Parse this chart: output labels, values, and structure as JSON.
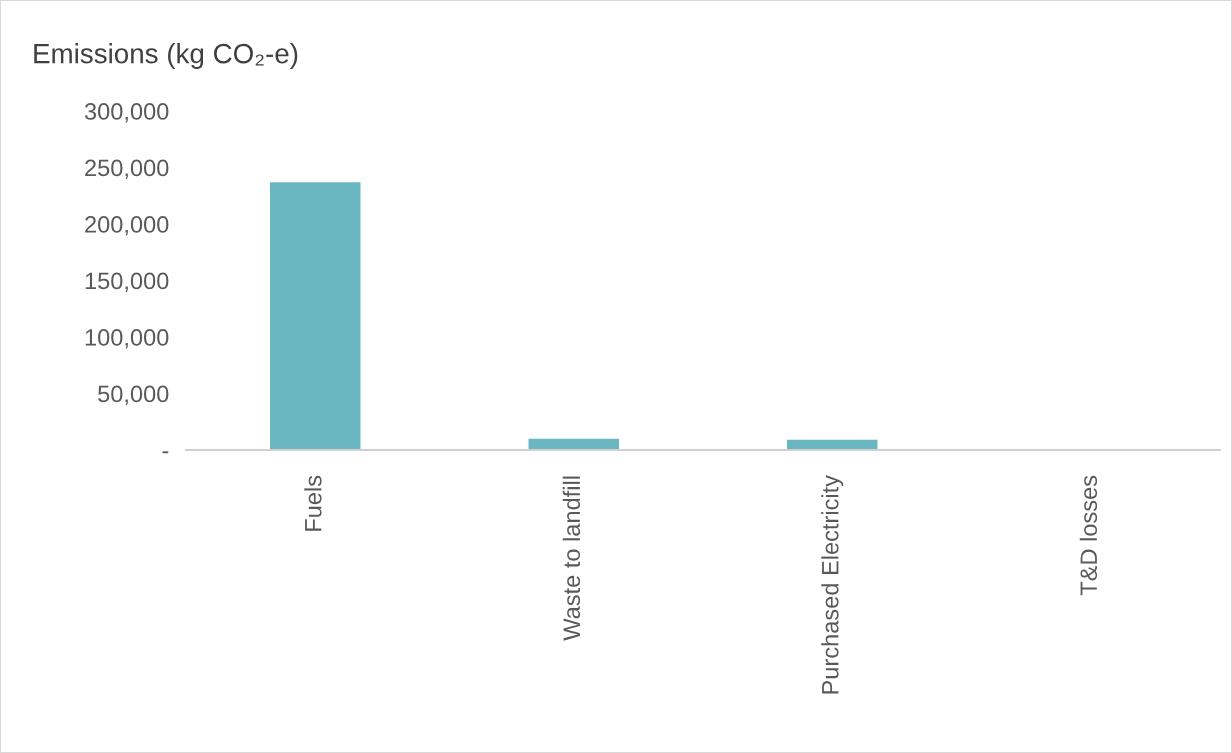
{
  "chart_data": {
    "type": "bar",
    "title": "Emissions (kg CO₂-e)",
    "categories": [
      "Fuels",
      "Waste to landfill",
      "Purchased Electricity",
      "T&D losses"
    ],
    "values": [
      237000,
      10000,
      9000,
      0
    ],
    "color": "#6ab7c2",
    "ylim": [
      0,
      300000
    ],
    "yticks": [
      {
        "value": 0,
        "label": "-"
      },
      {
        "value": 50000,
        "label": "50,000"
      },
      {
        "value": 100000,
        "label": "100,000"
      },
      {
        "value": 150000,
        "label": "150,000"
      },
      {
        "value": 200000,
        "label": "200,000"
      },
      {
        "value": 250000,
        "label": "250,000"
      },
      {
        "value": 300000,
        "label": "300,000"
      }
    ],
    "grid": false
  }
}
